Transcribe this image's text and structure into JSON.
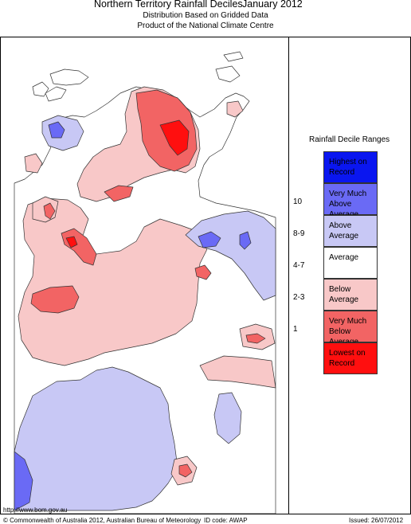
{
  "header": {
    "title": "Northern Territory Rainfall Deciles",
    "period": "January 2012",
    "subtitle1": "Distribution Based on Gridded Data",
    "subtitle2": "Product of the National Climate Centre"
  },
  "legend": {
    "title": "Rainfall Decile Ranges",
    "items": [
      {
        "range": "",
        "label": "Highest on Record",
        "color": "#0a16f0"
      },
      {
        "range": "10",
        "label": "Very Much Above Average",
        "color": "#6a6af5"
      },
      {
        "range": "8-9",
        "label": "Above Average",
        "color": "#c8c8f5"
      },
      {
        "range": "4-7",
        "label": "Average",
        "color": "#ffffff"
      },
      {
        "range": "2-3",
        "label": "Below Average",
        "color": "#f8c8c8"
      },
      {
        "range": "1",
        "label": "Very Much Below Average",
        "color": "#f26464"
      },
      {
        "range": "",
        "label": "Lowest on Record",
        "color": "#ff0f0f"
      }
    ]
  },
  "footer": {
    "url": "http://www.bom.gov.au",
    "copyright": "© Commonwealth of Australia 2012, Australian Bureau of Meteorology",
    "id_code": "ID code: AWAP",
    "issued": "Issued: 26/07/2012"
  }
}
